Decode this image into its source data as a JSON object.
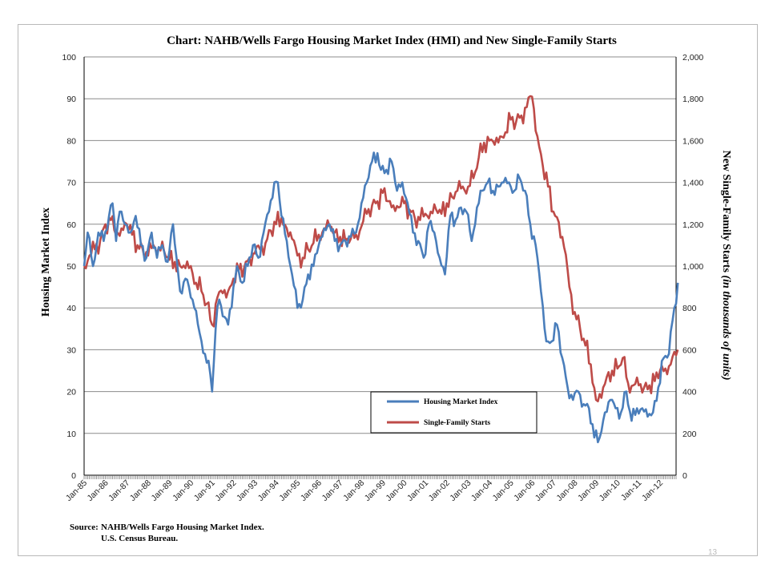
{
  "page_number": "13",
  "source": {
    "label": "Source:",
    "line1": "NAHB/Wells Fargo Housing Market Index.",
    "line2": "U.S. Census Bureau."
  },
  "chart_data": {
    "type": "line",
    "title": "Chart:  NAHB/Wells Fargo Housing Market Index (HMI) and New Single-Family Starts",
    "ylabel_left": "Housing Market Index",
    "ylabel_right_main": "New Single-Family Starts ",
    "ylabel_right_italic": "(in thousands  of units)",
    "ylim_left": [
      0,
      100
    ],
    "ylim_right": [
      0,
      2000
    ],
    "yticks_left": [
      "0",
      "10",
      "20",
      "30",
      "40",
      "50",
      "60",
      "70",
      "80",
      "90",
      "100"
    ],
    "yticks_right": [
      "0",
      "200",
      "400",
      "600",
      "800",
      "1,000",
      "1,200",
      "1,400",
      "1,600",
      "1,800",
      "2,000"
    ],
    "x_range": [
      "Jan-85",
      "Sep-12"
    ],
    "x_ticks": [
      "Jan-85",
      "Jan-86",
      "Jan-87",
      "Jan-88",
      "Jan-89",
      "Jan-90",
      "Jan-91",
      "Jan-92",
      "Jan-93",
      "Jan-94",
      "Jan-95",
      "Jan-96",
      "Jan-97",
      "Jan-98",
      "Jan-99",
      "Jan-00",
      "Jan-01",
      "Jan-02",
      "Jan-03",
      "Jan-04",
      "Jan-05",
      "Jan-06",
      "Jan-07",
      "Jan-08",
      "Jan-09",
      "Jan-10",
      "Jan-11",
      "Jan-12"
    ],
    "grid": "horizontal",
    "legend_position": "bottom-center",
    "series": [
      {
        "name": "Housing Market Index",
        "axis": "left",
        "color": "#4a7ebb",
        "points": [
          [
            "1985-01",
            50
          ],
          [
            "1985-03",
            58
          ],
          [
            "1985-06",
            50
          ],
          [
            "1985-09",
            58
          ],
          [
            "1985-12",
            56
          ],
          [
            "1986-03",
            62
          ],
          [
            "1986-05",
            65
          ],
          [
            "1986-07",
            56
          ],
          [
            "1986-09",
            63
          ],
          [
            "1986-12",
            60
          ],
          [
            "1987-03",
            58
          ],
          [
            "1987-06",
            62
          ],
          [
            "1987-09",
            55
          ],
          [
            "1987-12",
            52
          ],
          [
            "1988-03",
            58
          ],
          [
            "1988-06",
            52
          ],
          [
            "1988-09",
            55
          ],
          [
            "1988-12",
            51
          ],
          [
            "1989-03",
            60
          ],
          [
            "1989-05",
            52
          ],
          [
            "1989-07",
            44
          ],
          [
            "1989-10",
            47
          ],
          [
            "1989-12",
            45
          ],
          [
            "1990-03",
            40
          ],
          [
            "1990-06",
            34
          ],
          [
            "1990-09",
            29
          ],
          [
            "1990-12",
            24
          ],
          [
            "1991-01",
            20
          ],
          [
            "1991-03",
            35
          ],
          [
            "1991-05",
            42
          ],
          [
            "1991-07",
            38
          ],
          [
            "1991-10",
            36
          ],
          [
            "1992-01",
            45
          ],
          [
            "1992-03",
            50
          ],
          [
            "1992-06",
            46
          ],
          [
            "1992-09",
            50
          ],
          [
            "1992-12",
            55
          ],
          [
            "1993-03",
            52
          ],
          [
            "1993-06",
            58
          ],
          [
            "1993-09",
            63
          ],
          [
            "1993-12",
            70
          ],
          [
            "1994-02",
            70
          ],
          [
            "1994-04",
            62
          ],
          [
            "1994-07",
            56
          ],
          [
            "1994-10",
            48
          ],
          [
            "1995-01",
            40
          ],
          [
            "1995-04",
            42
          ],
          [
            "1995-07",
            48
          ],
          [
            "1995-10",
            50
          ],
          [
            "1996-01",
            55
          ],
          [
            "1996-04",
            59
          ],
          [
            "1996-07",
            60
          ],
          [
            "1996-10",
            56
          ],
          [
            "1997-01",
            55
          ],
          [
            "1997-04",
            56
          ],
          [
            "1997-07",
            57
          ],
          [
            "1997-10",
            58
          ],
          [
            "1998-01",
            65
          ],
          [
            "1998-04",
            70
          ],
          [
            "1998-07",
            75
          ],
          [
            "1998-10",
            77
          ],
          [
            "1998-12",
            73
          ],
          [
            "1999-03",
            73
          ],
          [
            "1999-06",
            75
          ],
          [
            "1999-09",
            68
          ],
          [
            "1999-12",
            70
          ],
          [
            "2000-03",
            65
          ],
          [
            "2000-06",
            58
          ],
          [
            "2000-09",
            56
          ],
          [
            "2000-12",
            52
          ],
          [
            "2001-03",
            60
          ],
          [
            "2001-06",
            58
          ],
          [
            "2001-09",
            52
          ],
          [
            "2001-12",
            48
          ],
          [
            "2002-03",
            62
          ],
          [
            "2002-06",
            61
          ],
          [
            "2002-09",
            64
          ],
          [
            "2002-12",
            63
          ],
          [
            "2003-03",
            56
          ],
          [
            "2003-06",
            64
          ],
          [
            "2003-09",
            68
          ],
          [
            "2003-12",
            70
          ],
          [
            "2004-03",
            68
          ],
          [
            "2004-06",
            69
          ],
          [
            "2004-09",
            70
          ],
          [
            "2004-12",
            70
          ],
          [
            "2005-03",
            68
          ],
          [
            "2005-06",
            71
          ],
          [
            "2005-09",
            68
          ],
          [
            "2005-12",
            60
          ],
          [
            "2006-03",
            55
          ],
          [
            "2006-06",
            44
          ],
          [
            "2006-09",
            32
          ],
          [
            "2006-12",
            32
          ],
          [
            "2007-03",
            36
          ],
          [
            "2007-06",
            28
          ],
          [
            "2007-09",
            21
          ],
          [
            "2007-12",
            18
          ],
          [
            "2008-03",
            20
          ],
          [
            "2008-06",
            17
          ],
          [
            "2008-09",
            16
          ],
          [
            "2008-12",
            9
          ],
          [
            "2009-03",
            9
          ],
          [
            "2009-06",
            15
          ],
          [
            "2009-09",
            18
          ],
          [
            "2009-12",
            16
          ],
          [
            "2010-03",
            15
          ],
          [
            "2010-06",
            20
          ],
          [
            "2010-09",
            13
          ],
          [
            "2010-12",
            16
          ],
          [
            "2011-03",
            16
          ],
          [
            "2011-06",
            14
          ],
          [
            "2011-09",
            15
          ],
          [
            "2011-12",
            21
          ],
          [
            "2012-03",
            28
          ],
          [
            "2012-06",
            29
          ],
          [
            "2012-08",
            37
          ],
          [
            "2012-09",
            40
          ],
          [
            "2012-10",
            41
          ],
          [
            "2012-11",
            46
          ]
        ]
      },
      {
        "name": "Single-Family Starts",
        "axis": "right",
        "color": "#be4b48",
        "points": [
          [
            "1985-01",
            1000
          ],
          [
            "1985-04",
            1050
          ],
          [
            "1985-07",
            1080
          ],
          [
            "1985-10",
            1120
          ],
          [
            "1986-01",
            1200
          ],
          [
            "1986-04",
            1220
          ],
          [
            "1986-07",
            1150
          ],
          [
            "1986-10",
            1180
          ],
          [
            "1987-01",
            1200
          ],
          [
            "1987-04",
            1150
          ],
          [
            "1987-07",
            1100
          ],
          [
            "1987-10",
            1080
          ],
          [
            "1988-01",
            1050
          ],
          [
            "1988-04",
            1100
          ],
          [
            "1988-07",
            1090
          ],
          [
            "1988-10",
            1070
          ],
          [
            "1989-01",
            1030
          ],
          [
            "1989-04",
            1020
          ],
          [
            "1989-07",
            1000
          ],
          [
            "1989-10",
            990
          ],
          [
            "1990-01",
            1000
          ],
          [
            "1990-04",
            920
          ],
          [
            "1990-07",
            880
          ],
          [
            "1990-10",
            820
          ],
          [
            "1991-01",
            720
          ],
          [
            "1991-04",
            850
          ],
          [
            "1991-07",
            870
          ],
          [
            "1991-10",
            880
          ],
          [
            "1992-01",
            940
          ],
          [
            "1992-04",
            980
          ],
          [
            "1992-07",
            990
          ],
          [
            "1992-10",
            1040
          ],
          [
            "1993-01",
            1060
          ],
          [
            "1993-04",
            1080
          ],
          [
            "1993-07",
            1110
          ],
          [
            "1993-10",
            1170
          ],
          [
            "1994-01",
            1200
          ],
          [
            "1994-04",
            1230
          ],
          [
            "1994-07",
            1180
          ],
          [
            "1994-10",
            1130
          ],
          [
            "1995-01",
            1050
          ],
          [
            "1995-04",
            1040
          ],
          [
            "1995-07",
            1080
          ],
          [
            "1995-10",
            1110
          ],
          [
            "1996-01",
            1150
          ],
          [
            "1996-04",
            1180
          ],
          [
            "1996-07",
            1190
          ],
          [
            "1996-10",
            1160
          ],
          [
            "1997-01",
            1140
          ],
          [
            "1997-04",
            1120
          ],
          [
            "1997-07",
            1130
          ],
          [
            "1997-10",
            1150
          ],
          [
            "1998-01",
            1190
          ],
          [
            "1998-04",
            1250
          ],
          [
            "1998-07",
            1290
          ],
          [
            "1998-10",
            1310
          ],
          [
            "1999-01",
            1350
          ],
          [
            "1999-04",
            1310
          ],
          [
            "1999-07",
            1290
          ],
          [
            "1999-10",
            1280
          ],
          [
            "2000-01",
            1300
          ],
          [
            "2000-04",
            1270
          ],
          [
            "2000-07",
            1230
          ],
          [
            "2000-10",
            1220
          ],
          [
            "2001-01",
            1250
          ],
          [
            "2001-04",
            1260
          ],
          [
            "2001-07",
            1270
          ],
          [
            "2001-10",
            1250
          ],
          [
            "2002-01",
            1300
          ],
          [
            "2002-04",
            1330
          ],
          [
            "2002-07",
            1360
          ],
          [
            "2002-10",
            1380
          ],
          [
            "2003-01",
            1380
          ],
          [
            "2003-04",
            1420
          ],
          [
            "2003-07",
            1520
          ],
          [
            "2003-10",
            1590
          ],
          [
            "2004-01",
            1600
          ],
          [
            "2004-04",
            1580
          ],
          [
            "2004-07",
            1620
          ],
          [
            "2004-10",
            1640
          ],
          [
            "2005-01",
            1700
          ],
          [
            "2005-04",
            1690
          ],
          [
            "2005-07",
            1720
          ],
          [
            "2005-10",
            1760
          ],
          [
            "2006-01",
            1810
          ],
          [
            "2006-04",
            1620
          ],
          [
            "2006-07",
            1480
          ],
          [
            "2006-10",
            1380
          ],
          [
            "2007-01",
            1260
          ],
          [
            "2007-04",
            1210
          ],
          [
            "2007-07",
            1090
          ],
          [
            "2007-10",
            900
          ],
          [
            "2008-01",
            780
          ],
          [
            "2008-04",
            700
          ],
          [
            "2008-07",
            620
          ],
          [
            "2008-10",
            530
          ],
          [
            "2009-01",
            360
          ],
          [
            "2009-04",
            370
          ],
          [
            "2009-07",
            470
          ],
          [
            "2009-10",
            500
          ],
          [
            "2010-01",
            510
          ],
          [
            "2010-04",
            560
          ],
          [
            "2010-07",
            440
          ],
          [
            "2010-10",
            430
          ],
          [
            "2011-01",
            430
          ],
          [
            "2011-04",
            420
          ],
          [
            "2011-07",
            430
          ],
          [
            "2011-10",
            450
          ],
          [
            "2012-01",
            500
          ],
          [
            "2012-04",
            510
          ],
          [
            "2012-07",
            530
          ],
          [
            "2012-09",
            590
          ],
          [
            "2012-11",
            600
          ]
        ]
      }
    ]
  }
}
